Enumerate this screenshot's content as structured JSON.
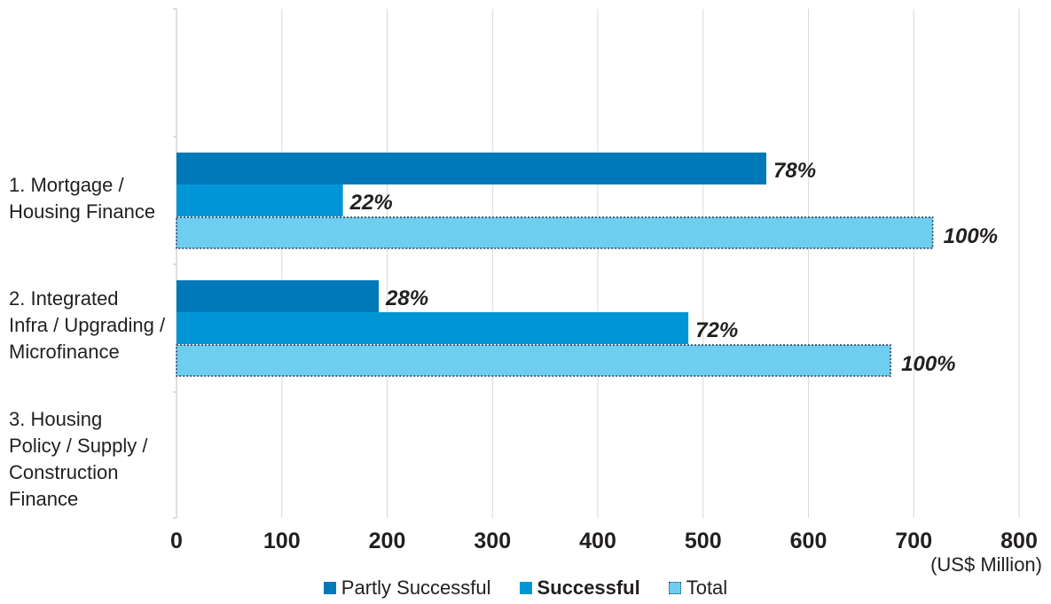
{
  "chart_data": {
    "type": "bar",
    "orientation": "horizontal",
    "categories": [
      "1. Mortgage / Housing Finance",
      "2. Integrated Infra / Upgrading / Microfinance",
      "3. Housing Policy / Supply / Construction Finance"
    ],
    "category_lines": [
      [
        "1. Mortgage /",
        "Housing Finance"
      ],
      [
        "2. Integrated",
        "Infra / Upgrading /",
        "Microfinance"
      ],
      [
        "3. Housing",
        "Policy / Supply /",
        "Construction",
        "Finance"
      ]
    ],
    "series": [
      {
        "name": "Partly Successful",
        "color": "#0079b8",
        "values": [
          560,
          192,
          null
        ],
        "labels": [
          "78%",
          "28%",
          ""
        ]
      },
      {
        "name": "Successful",
        "color": "#0096d6",
        "values": [
          158,
          486,
          null
        ],
        "labels": [
          "22%",
          "72%",
          ""
        ]
      },
      {
        "name": "Total",
        "color": "#6dcef0",
        "values": [
          718,
          678,
          null
        ],
        "labels": [
          "100%",
          "100%",
          ""
        ]
      }
    ],
    "xlim": [
      0,
      800
    ],
    "xticks": [
      "0",
      "100",
      "200",
      "300",
      "400",
      "500",
      "600",
      "700",
      "800"
    ],
    "xunit": "(US$ Million)",
    "grid": true,
    "legend_position": "bottom"
  }
}
